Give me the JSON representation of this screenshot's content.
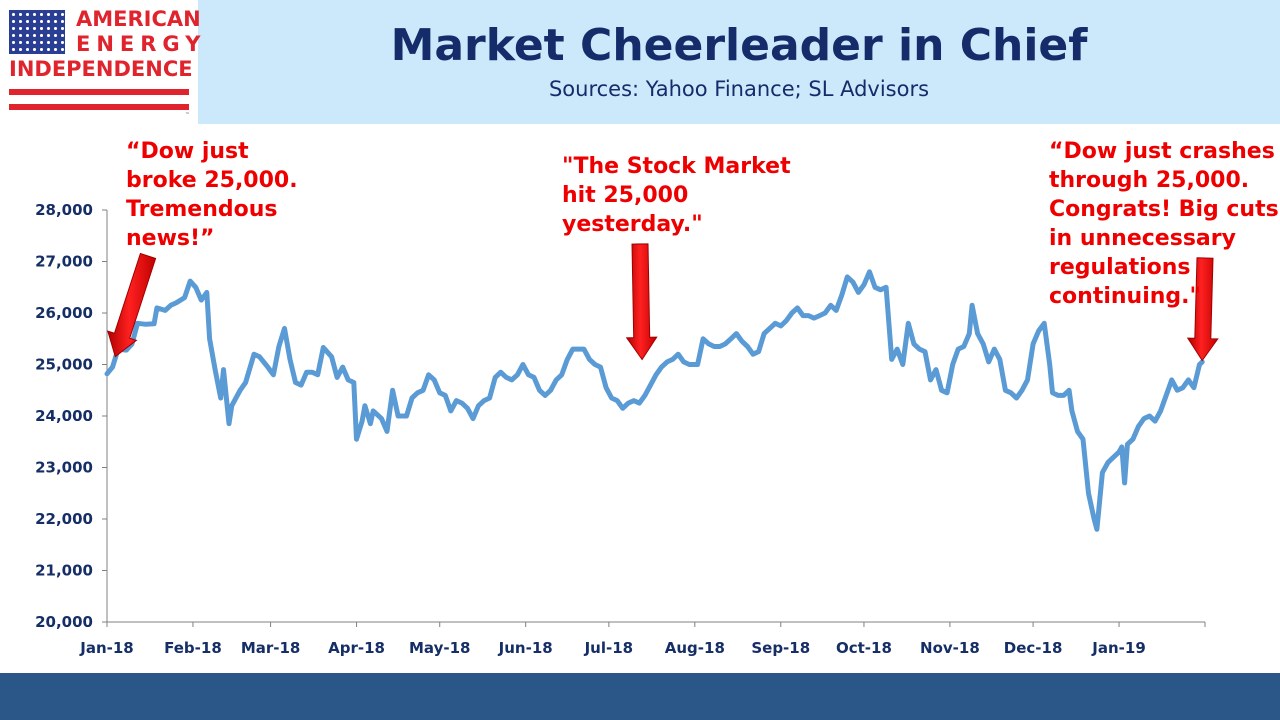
{
  "logo": {
    "line1": "AMERICAN",
    "line2": "ENERGY",
    "line3": "INDEPENDENCE",
    "trademark": "™",
    "colors": {
      "red": "#e0242d",
      "blue": "#2a3f93"
    }
  },
  "header": {
    "title": "Market Cheerleader in Chief",
    "subtitle": "Sources: Yahoo Finance; SL Advisors"
  },
  "annotations": [
    {
      "lines": [
        "“Dow just",
        "broke 25,000.",
        "Tremendous",
        "news!”"
      ],
      "date": "2018-01-04",
      "value": 25075
    },
    {
      "lines": [
        "\"The Stock Market",
        "hit 25,000",
        "yesterday.\""
      ],
      "date": "2018-07-13",
      "value": 25020
    },
    {
      "lines": [
        "“Dow just crashes",
        "through 25,000.",
        "Congrats! Big cuts",
        "in unnecessary",
        "regulations",
        "continuing.\""
      ],
      "date": "2019-01-31",
      "value": 25000
    }
  ],
  "chart_data": {
    "type": "line",
    "title": "Market Cheerleader in Chief",
    "xlabel": "",
    "ylabel": "",
    "ylim": [
      20000,
      28000
    ],
    "yticks": [
      20000,
      21000,
      22000,
      23000,
      24000,
      25000,
      26000,
      27000,
      28000
    ],
    "ytick_labels": [
      "20,000",
      "21,000",
      "22,000",
      "23,000",
      "24,000",
      "25,000",
      "26,000",
      "27,000",
      "28,000"
    ],
    "xlim": [
      "2018-01-01",
      "2019-02-01"
    ],
    "xticks": [
      {
        "label": "Jan-18",
        "date": "2018-01-01"
      },
      {
        "label": "Feb-18",
        "date": "2018-02-01"
      },
      {
        "label": "Mar-18",
        "date": "2018-03-01"
      },
      {
        "label": "Apr-18",
        "date": "2018-04-01"
      },
      {
        "label": "May-18",
        "date": "2018-05-01"
      },
      {
        "label": "Jun-18",
        "date": "2018-06-01"
      },
      {
        "label": "Jul-18",
        "date": "2018-07-01"
      },
      {
        "label": "Aug-18",
        "date": "2018-08-01"
      },
      {
        "label": "Sep-18",
        "date": "2018-09-01"
      },
      {
        "label": "Oct-18",
        "date": "2018-10-01"
      },
      {
        "label": "Nov-18",
        "date": "2018-11-01"
      },
      {
        "label": "Dec-18",
        "date": "2018-12-01"
      },
      {
        "label": "Jan-19",
        "date": "2019-01-01"
      }
    ],
    "grid": false,
    "legend": "none",
    "line_color": "#5b9bd5",
    "series": [
      {
        "points": [
          [
            "2018-01-01",
            24820
          ],
          [
            "2018-01-03",
            24950
          ],
          [
            "2018-01-05",
            25300
          ],
          [
            "2018-01-08",
            25280
          ],
          [
            "2018-01-10",
            25400
          ],
          [
            "2018-01-12",
            25800
          ],
          [
            "2018-01-15",
            25780
          ],
          [
            "2018-01-18",
            25790
          ],
          [
            "2018-01-19",
            26100
          ],
          [
            "2018-01-22",
            26050
          ],
          [
            "2018-01-24",
            26150
          ],
          [
            "2018-01-26",
            26200
          ],
          [
            "2018-01-29",
            26300
          ],
          [
            "2018-01-31",
            26620
          ],
          [
            "2018-02-02",
            26500
          ],
          [
            "2018-02-04",
            26250
          ],
          [
            "2018-02-06",
            26400
          ],
          [
            "2018-02-07",
            25500
          ],
          [
            "2018-02-09",
            24900
          ],
          [
            "2018-02-11",
            24350
          ],
          [
            "2018-02-12",
            24900
          ],
          [
            "2018-02-14",
            23850
          ],
          [
            "2018-02-15",
            24200
          ],
          [
            "2018-02-18",
            24500
          ],
          [
            "2018-02-20",
            24650
          ],
          [
            "2018-02-23",
            25200
          ],
          [
            "2018-02-25",
            25150
          ],
          [
            "2018-02-28",
            24950
          ],
          [
            "2018-03-02",
            24800
          ],
          [
            "2018-03-04",
            25350
          ],
          [
            "2018-03-06",
            25700
          ],
          [
            "2018-03-08",
            25100
          ],
          [
            "2018-03-10",
            24650
          ],
          [
            "2018-03-12",
            24600
          ],
          [
            "2018-03-14",
            24850
          ],
          [
            "2018-03-16",
            24850
          ],
          [
            "2018-03-18",
            24800
          ],
          [
            "2018-03-20",
            25330
          ],
          [
            "2018-03-23",
            25150
          ],
          [
            "2018-03-25",
            24750
          ],
          [
            "2018-03-27",
            24950
          ],
          [
            "2018-03-29",
            24700
          ],
          [
            "2018-03-31",
            24650
          ],
          [
            "2018-04-01",
            23550
          ],
          [
            "2018-04-03",
            23900
          ],
          [
            "2018-04-04",
            24200
          ],
          [
            "2018-04-06",
            23850
          ],
          [
            "2018-04-07",
            24100
          ],
          [
            "2018-04-10",
            23950
          ],
          [
            "2018-04-12",
            23700
          ],
          [
            "2018-04-14",
            24500
          ],
          [
            "2018-04-16",
            24000
          ],
          [
            "2018-04-19",
            24000
          ],
          [
            "2018-04-21",
            24350
          ],
          [
            "2018-04-23",
            24450
          ],
          [
            "2018-04-25",
            24500
          ],
          [
            "2018-04-27",
            24800
          ],
          [
            "2018-04-29",
            24700
          ],
          [
            "2018-05-01",
            24450
          ],
          [
            "2018-05-03",
            24400
          ],
          [
            "2018-05-05",
            24100
          ],
          [
            "2018-05-07",
            24300
          ],
          [
            "2018-05-09",
            24250
          ],
          [
            "2018-05-11",
            24150
          ],
          [
            "2018-05-13",
            23950
          ],
          [
            "2018-05-15",
            24200
          ],
          [
            "2018-05-17",
            24300
          ],
          [
            "2018-05-19",
            24350
          ],
          [
            "2018-05-21",
            24750
          ],
          [
            "2018-05-23",
            24850
          ],
          [
            "2018-05-25",
            24750
          ],
          [
            "2018-05-27",
            24700
          ],
          [
            "2018-05-29",
            24800
          ],
          [
            "2018-05-31",
            25000
          ],
          [
            "2018-06-02",
            24800
          ],
          [
            "2018-06-04",
            24750
          ],
          [
            "2018-06-06",
            24500
          ],
          [
            "2018-06-08",
            24400
          ],
          [
            "2018-06-10",
            24500
          ],
          [
            "2018-06-12",
            24700
          ],
          [
            "2018-06-14",
            24800
          ],
          [
            "2018-06-16",
            25100
          ],
          [
            "2018-06-18",
            25300
          ],
          [
            "2018-06-20",
            25300
          ],
          [
            "2018-06-22",
            25300
          ],
          [
            "2018-06-24",
            25100
          ],
          [
            "2018-06-26",
            25000
          ],
          [
            "2018-06-28",
            24950
          ],
          [
            "2018-06-30",
            24550
          ],
          [
            "2018-07-02",
            24350
          ],
          [
            "2018-07-04",
            24300
          ],
          [
            "2018-07-06",
            24150
          ],
          [
            "2018-07-08",
            24250
          ],
          [
            "2018-07-10",
            24300
          ],
          [
            "2018-07-12",
            24250
          ],
          [
            "2018-07-14",
            24400
          ],
          [
            "2018-07-16",
            24600
          ],
          [
            "2018-07-18",
            24800
          ],
          [
            "2018-07-20",
            24950
          ],
          [
            "2018-07-22",
            25050
          ],
          [
            "2018-07-24",
            25100
          ],
          [
            "2018-07-26",
            25200
          ],
          [
            "2018-07-28",
            25050
          ],
          [
            "2018-07-30",
            25000
          ],
          [
            "2018-08-02",
            25000
          ],
          [
            "2018-08-04",
            25500
          ],
          [
            "2018-08-06",
            25400
          ],
          [
            "2018-08-08",
            25350
          ],
          [
            "2018-08-10",
            25350
          ],
          [
            "2018-08-12",
            25400
          ],
          [
            "2018-08-14",
            25500
          ],
          [
            "2018-08-16",
            25600
          ],
          [
            "2018-08-18",
            25450
          ],
          [
            "2018-08-20",
            25350
          ],
          [
            "2018-08-22",
            25200
          ],
          [
            "2018-08-24",
            25250
          ],
          [
            "2018-08-26",
            25600
          ],
          [
            "2018-08-28",
            25700
          ],
          [
            "2018-08-30",
            25800
          ],
          [
            "2018-09-01",
            25750
          ],
          [
            "2018-09-03",
            25850
          ],
          [
            "2018-09-05",
            26000
          ],
          [
            "2018-09-07",
            26100
          ],
          [
            "2018-09-09",
            25950
          ],
          [
            "2018-09-11",
            25950
          ],
          [
            "2018-09-13",
            25900
          ],
          [
            "2018-09-15",
            25950
          ],
          [
            "2018-09-17",
            26000
          ],
          [
            "2018-09-19",
            26150
          ],
          [
            "2018-09-21",
            26050
          ],
          [
            "2018-09-23",
            26350
          ],
          [
            "2018-09-25",
            26700
          ],
          [
            "2018-09-27",
            26600
          ],
          [
            "2018-09-29",
            26400
          ],
          [
            "2018-10-01",
            26550
          ],
          [
            "2018-10-03",
            26800
          ],
          [
            "2018-10-05",
            26500
          ],
          [
            "2018-10-07",
            26450
          ],
          [
            "2018-10-09",
            26500
          ],
          [
            "2018-10-11",
            25100
          ],
          [
            "2018-10-13",
            25300
          ],
          [
            "2018-10-15",
            25000
          ],
          [
            "2018-10-17",
            25800
          ],
          [
            "2018-10-19",
            25400
          ],
          [
            "2018-10-21",
            25300
          ],
          [
            "2018-10-23",
            25250
          ],
          [
            "2018-10-25",
            24700
          ],
          [
            "2018-10-27",
            24900
          ],
          [
            "2018-10-29",
            24500
          ],
          [
            "2018-10-31",
            24450
          ],
          [
            "2018-11-02",
            25000
          ],
          [
            "2018-11-04",
            25300
          ],
          [
            "2018-11-06",
            25350
          ],
          [
            "2018-11-08",
            25600
          ],
          [
            "2018-11-09",
            26150
          ],
          [
            "2018-11-11",
            25600
          ],
          [
            "2018-11-13",
            25400
          ],
          [
            "2018-11-15",
            25050
          ],
          [
            "2018-11-17",
            25300
          ],
          [
            "2018-11-19",
            25100
          ],
          [
            "2018-11-21",
            24500
          ],
          [
            "2018-11-23",
            24450
          ],
          [
            "2018-11-25",
            24350
          ],
          [
            "2018-11-27",
            24500
          ],
          [
            "2018-11-29",
            24700
          ],
          [
            "2018-12-01",
            25400
          ],
          [
            "2018-12-03",
            25650
          ],
          [
            "2018-12-05",
            25800
          ],
          [
            "2018-12-07",
            25000
          ],
          [
            "2018-12-08",
            24450
          ],
          [
            "2018-12-10",
            24400
          ],
          [
            "2018-12-12",
            24400
          ],
          [
            "2018-12-14",
            24500
          ],
          [
            "2018-12-15",
            24100
          ],
          [
            "2018-12-17",
            23700
          ],
          [
            "2018-12-19",
            23550
          ],
          [
            "2018-12-21",
            22500
          ],
          [
            "2018-12-23",
            22000
          ],
          [
            "2018-12-24",
            21800
          ],
          [
            "2018-12-26",
            22900
          ],
          [
            "2018-12-28",
            23100
          ],
          [
            "2018-12-30",
            23200
          ],
          [
            "2019-01-01",
            23300
          ],
          [
            "2019-01-02",
            23400
          ],
          [
            "2019-01-03",
            22700
          ],
          [
            "2019-01-04",
            23450
          ],
          [
            "2019-01-06",
            23550
          ],
          [
            "2019-01-08",
            23800
          ],
          [
            "2019-01-10",
            23950
          ],
          [
            "2019-01-12",
            24000
          ],
          [
            "2019-01-14",
            23900
          ],
          [
            "2019-01-16",
            24100
          ],
          [
            "2019-01-18",
            24400
          ],
          [
            "2019-01-20",
            24700
          ],
          [
            "2019-01-22",
            24500
          ],
          [
            "2019-01-24",
            24550
          ],
          [
            "2019-01-26",
            24700
          ],
          [
            "2019-01-28",
            24550
          ],
          [
            "2019-01-30",
            25000
          ],
          [
            "2019-01-31",
            25050
          ]
        ]
      }
    ]
  }
}
